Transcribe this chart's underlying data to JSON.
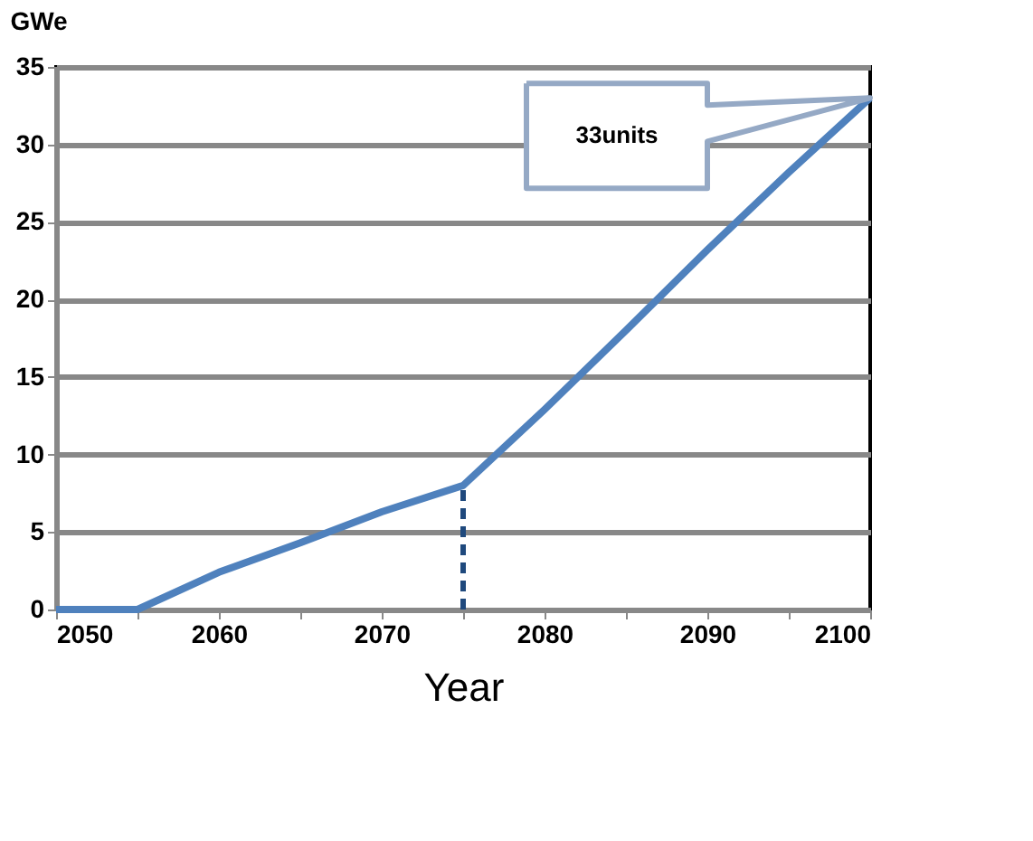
{
  "chart_data": {
    "type": "line",
    "xlabel": "Year",
    "ylabel": "GWe",
    "x": [
      2050,
      2055,
      2060,
      2065,
      2070,
      2075,
      2080,
      2085,
      2090,
      2095,
      2100
    ],
    "series": [
      {
        "color": "#4f81bd",
        "values": [
          0,
          0,
          2.4,
          4.3,
          6.3,
          8,
          12.9,
          18,
          23.2,
          28.2,
          33
        ]
      },
      {
        "type": "line",
        "color": "#1f497d",
        "line_style": "dashed",
        "x": [
          2075,
          2075
        ],
        "values": [
          0,
          8
        ]
      }
    ],
    "xlim": [
      2050,
      2100
    ],
    "xticks": [
      2050,
      {
        "value": 2055,
        "label": null
      },
      2060,
      {
        "value": 2065,
        "label": null
      },
      2070,
      {
        "value": 2075,
        "label": null
      },
      2080,
      {
        "value": 2085,
        "label": null
      },
      2090,
      {
        "value": 2095,
        "label": null
      },
      2100
    ],
    "ylim": [
      0,
      35
    ],
    "yticks": [
      0,
      5,
      10,
      15,
      20,
      25,
      30,
      35
    ],
    "grid": "y",
    "marker": "none",
    "line_style": "solid",
    "annotations": [
      "33units"
    ]
  }
}
